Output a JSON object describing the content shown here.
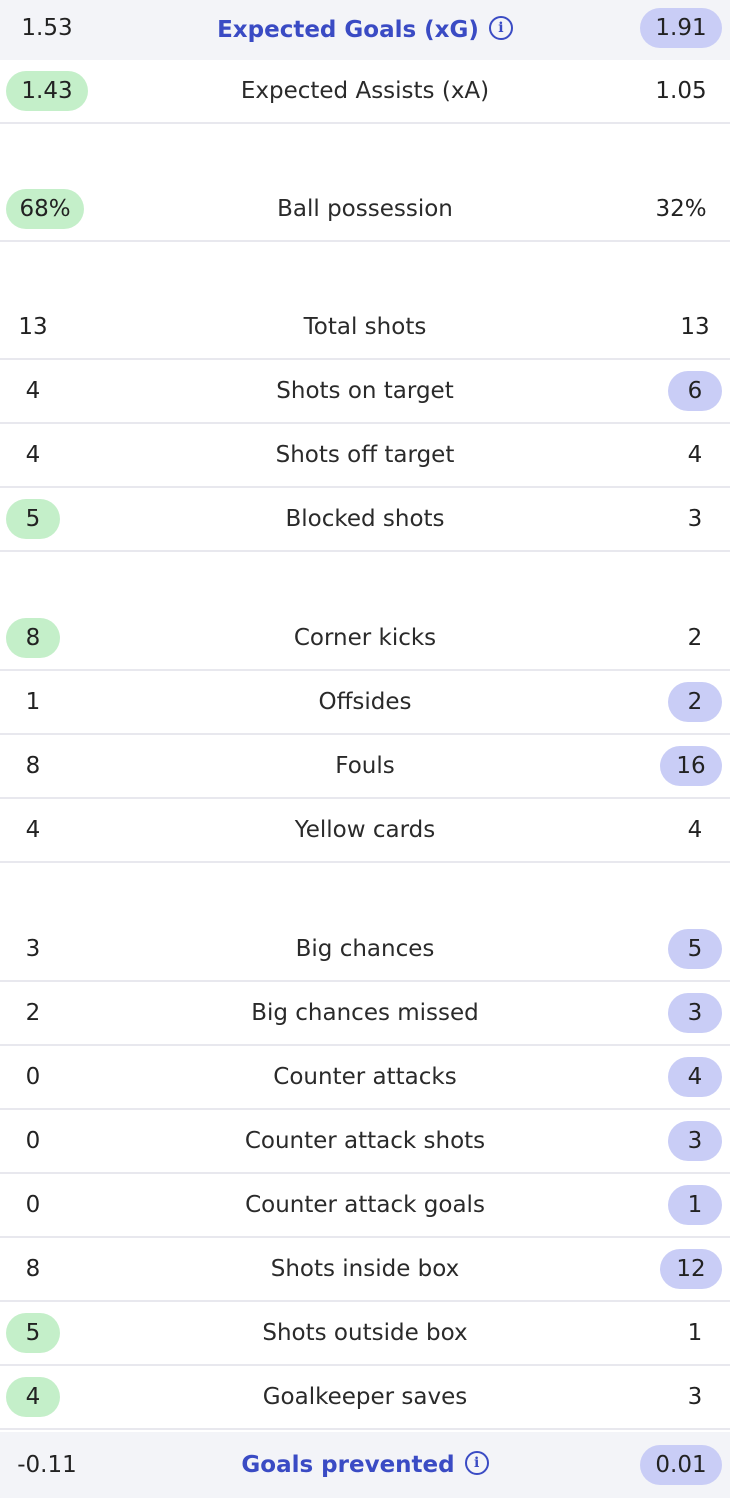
{
  "xg_row": {
    "home": "1.53",
    "label": "Expected Goals (xG)",
    "away": "1.91"
  },
  "xa_row": {
    "home": "1.43",
    "label": "Expected Assists (xA)",
    "away": "1.05"
  },
  "possession_row": {
    "home": "68%",
    "label": "Ball possession",
    "away": "32%"
  },
  "shots": [
    {
      "home": "13",
      "label": "Total shots",
      "away": "13"
    },
    {
      "home": "4",
      "label": "Shots on target",
      "away": "6"
    },
    {
      "home": "4",
      "label": "Shots off target",
      "away": "4"
    },
    {
      "home": "5",
      "label": "Blocked shots",
      "away": "3"
    }
  ],
  "discipline": [
    {
      "home": "8",
      "label": "Corner kicks",
      "away": "2"
    },
    {
      "home": "1",
      "label": "Offsides",
      "away": "2"
    },
    {
      "home": "8",
      "label": "Fouls",
      "away": "16"
    },
    {
      "home": "4",
      "label": "Yellow cards",
      "away": "4"
    }
  ],
  "attack": [
    {
      "home": "3",
      "label": "Big chances",
      "away": "5"
    },
    {
      "home": "2",
      "label": "Big chances missed",
      "away": "3"
    },
    {
      "home": "0",
      "label": "Counter attacks",
      "away": "4"
    },
    {
      "home": "0",
      "label": "Counter attack shots",
      "away": "3"
    },
    {
      "home": "0",
      "label": "Counter attack goals",
      "away": "1"
    },
    {
      "home": "8",
      "label": "Shots inside box",
      "away": "12"
    },
    {
      "home": "5",
      "label": "Shots outside box",
      "away": "1"
    },
    {
      "home": "4",
      "label": "Goalkeeper saves",
      "away": "3"
    }
  ],
  "prevented_row": {
    "home": "-0.11",
    "label": "Goals prevented",
    "away": "0.01"
  },
  "icons": {
    "info": "info-icon"
  },
  "colors": {
    "home_highlight": "#c4efc9",
    "away_highlight": "#c9cdf6",
    "feature_label": "#3a4bc4",
    "feature_background": "#f3f4f8"
  }
}
